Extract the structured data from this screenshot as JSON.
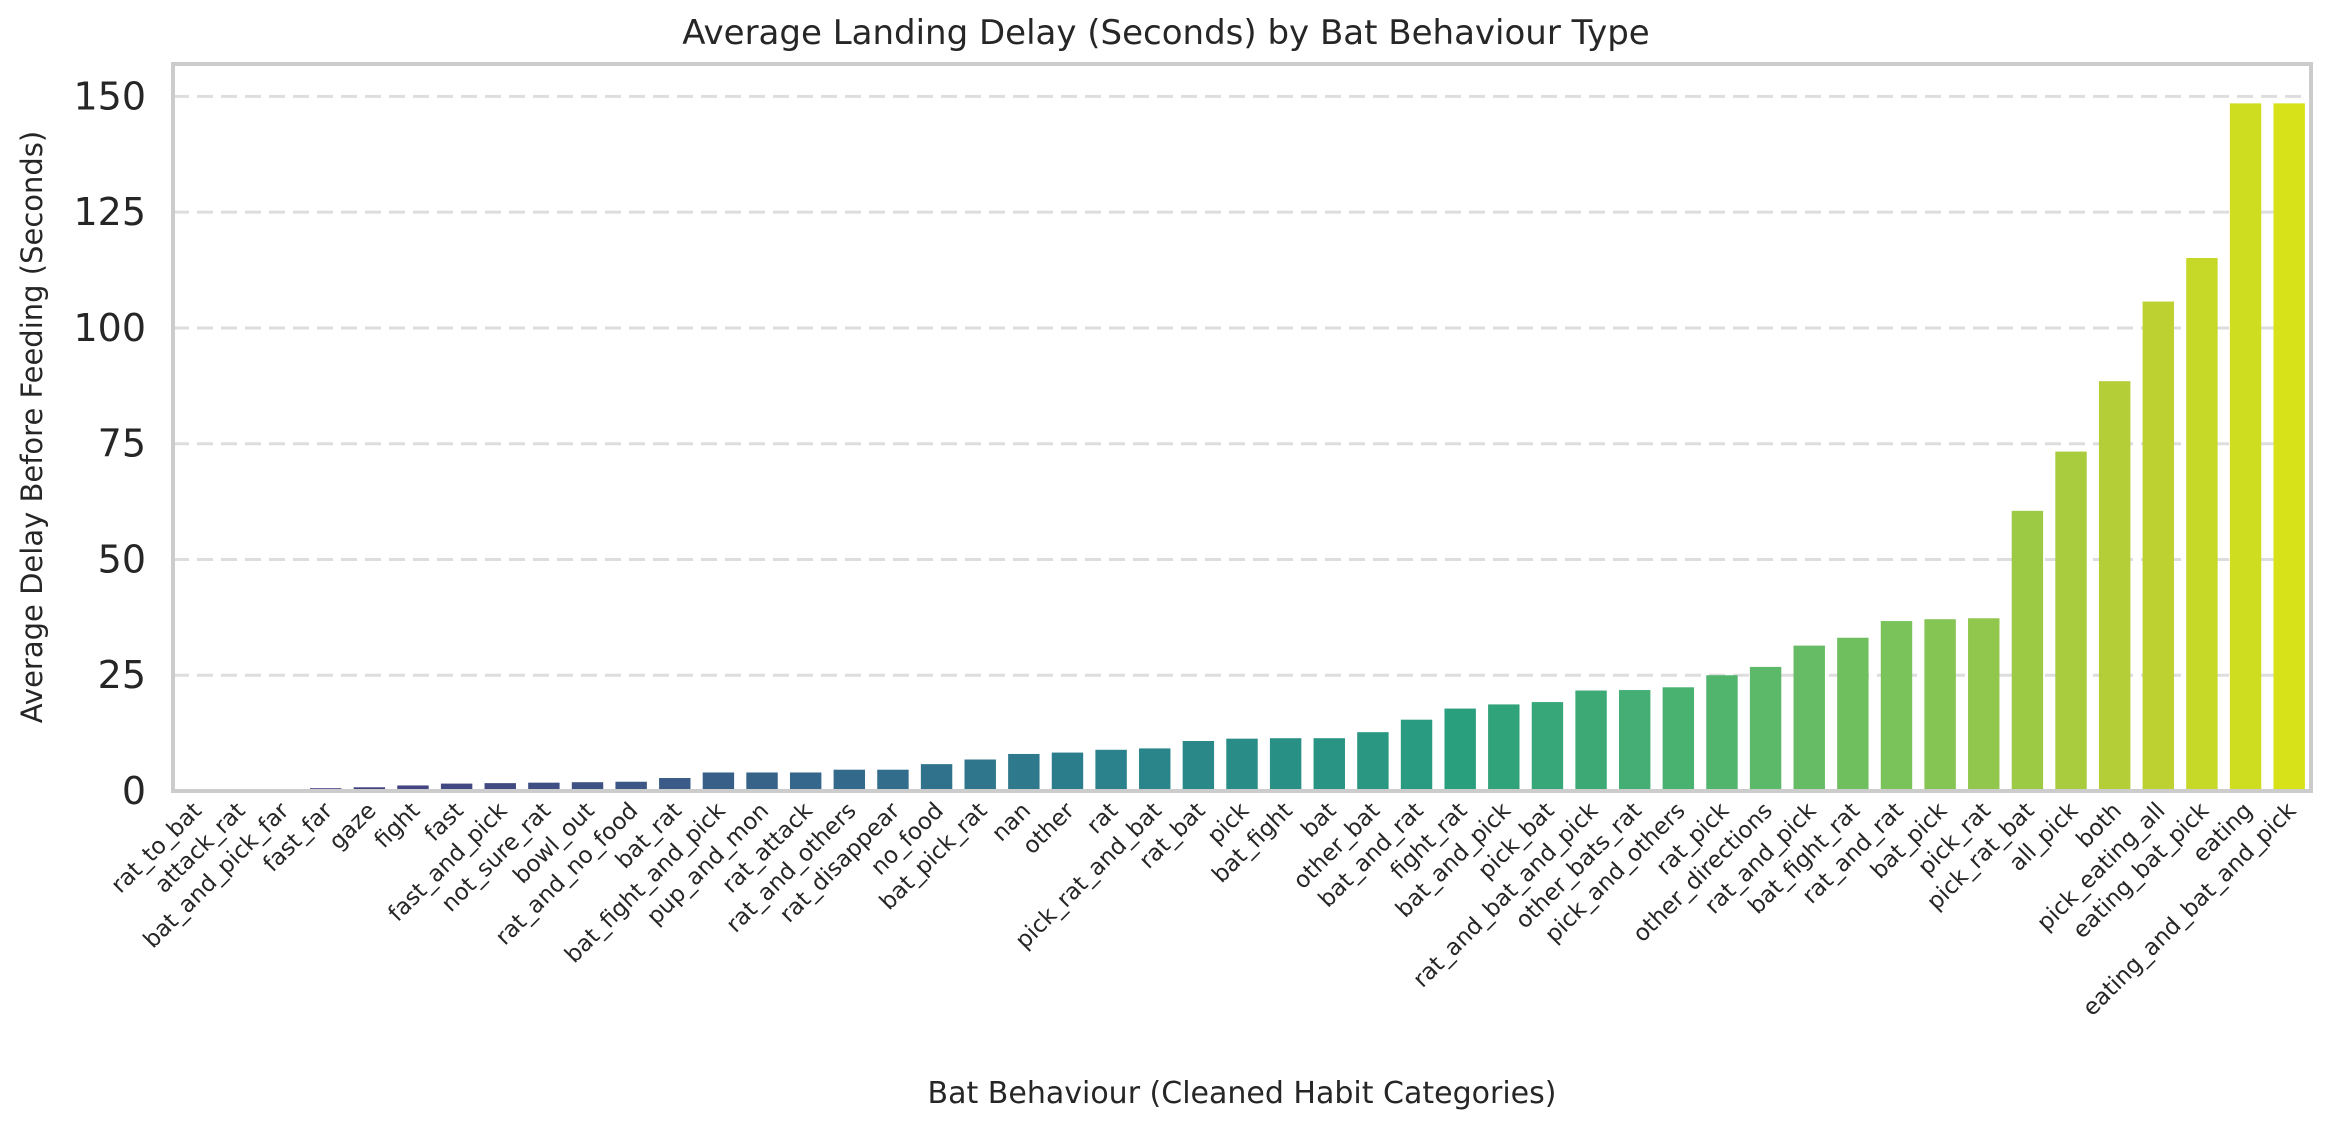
{
  "chart_data": {
    "type": "bar",
    "title": "Average Landing Delay (Seconds) by Bat Behaviour Type",
    "xlabel": "Bat Behaviour (Cleaned Habit Categories)",
    "ylabel": "Average Delay Before Feeding (Seconds)",
    "ylim": [
      0,
      157
    ],
    "yticks": [
      0,
      25,
      50,
      75,
      100,
      125,
      150
    ],
    "grid": "horizontal dashed",
    "legend": "none",
    "colormap": "viridis",
    "colors": {
      "start": "#46327e",
      "end": "#d8e219",
      "grid": "#dddddd",
      "frame": "#cccccc"
    },
    "categories": [
      "rat_to_bat",
      "attack_rat",
      "bat_and_pick_far",
      "fast_far",
      "gaze",
      "fight",
      "fast",
      "fast_and_pick",
      "not_sure_rat",
      "bowl_out",
      "rat_and_no_food",
      "bat_rat",
      "bat_fight_and_pick",
      "pup_and_mon",
      "rat_attack",
      "rat_and_others",
      "rat_disappear",
      "no_food",
      "bat_pick_rat",
      "nan",
      "other",
      "rat",
      "pick_rat_and_bat",
      "rat_bat",
      "pick",
      "bat_fight",
      "bat",
      "other_bat",
      "bat_and_rat",
      "fight_rat",
      "bat_and_pick",
      "pick_bat",
      "rat_and_bat_and_pick",
      "other_bats_rat",
      "pick_and_others",
      "rat_pick",
      "other_directions",
      "rat_and_pick",
      "bat_fight_rat",
      "rat_and_rat",
      "bat_pick",
      "pick_rat",
      "pick_rat_bat",
      "all_pick",
      "both",
      "pick_eating_all",
      "eating_bat_pick",
      "eating",
      "eating_and_bat_and_pick"
    ],
    "values": [
      0.0,
      0.0,
      0.0,
      0.6,
      0.8,
      1.2,
      1.6,
      1.7,
      1.8,
      1.9,
      2.0,
      2.8,
      4.0,
      4.0,
      4.0,
      4.6,
      4.6,
      5.8,
      6.8,
      8.0,
      8.3,
      8.9,
      9.2,
      10.8,
      11.3,
      11.4,
      11.4,
      12.7,
      15.4,
      17.8,
      18.7,
      19.2,
      21.7,
      21.8,
      22.4,
      25.0,
      26.8,
      31.4,
      33.1,
      36.7,
      37.1,
      37.3,
      60.5,
      73.3,
      88.5,
      105.7,
      115.1,
      148.5,
      148.5
    ]
  }
}
